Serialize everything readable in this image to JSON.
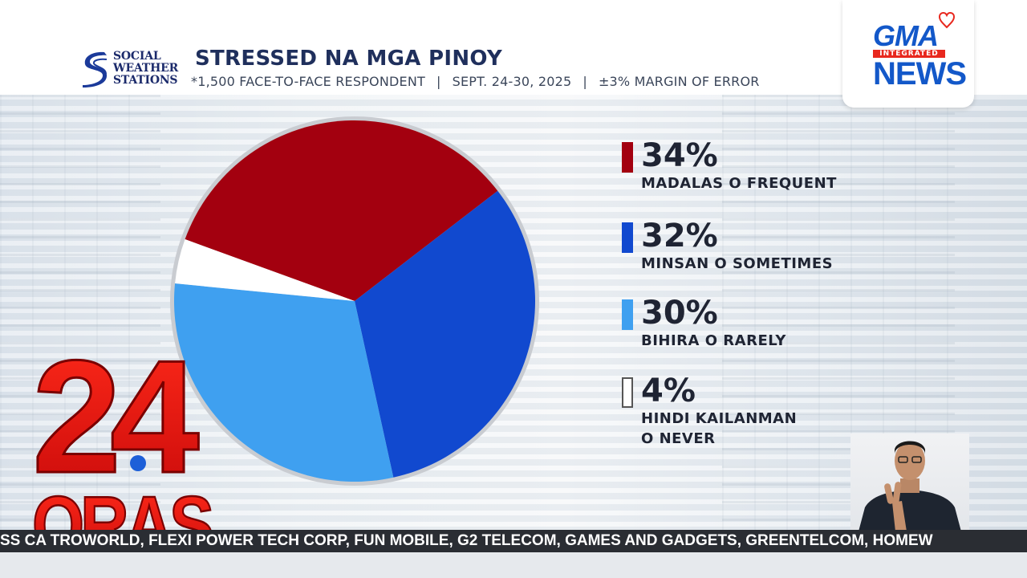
{
  "header": {
    "sws_logo": [
      "SOCIAL",
      "WEATHER",
      "STATIONS"
    ],
    "title": "STRESSED NA MGA PINOY",
    "subtitle_parts": [
      "*1,500 FACE-TO-FACE RESPONDENT",
      "SEPT. 24-30, 2025",
      "±3% MARGIN OF ERROR"
    ],
    "separator": "|"
  },
  "network_logo": {
    "top": "GMA",
    "band": "INTEGRATED",
    "bottom": "NEWS"
  },
  "show_logo": {
    "line1": "24",
    "line2": "ORAS"
  },
  "ticker": {
    "text": "SS CA   TROWORLD, FLEXI POWER TECH CORP, FUN MOBILE, G2 TELECOM, GAMES AND GADGETS, GREENTELCOM,  HOMEW"
  },
  "chart_data": {
    "type": "pie",
    "slices": [
      {
        "label": "MADALAS O FREQUENT",
        "value": 34,
        "display": "34%",
        "color": "#a3000f"
      },
      {
        "label": "MINSAN O SOMETIMES",
        "value": 32,
        "display": "32%",
        "color": "#1149cf"
      },
      {
        "label": "BIHIRA O RARELY",
        "value": 30,
        "display": "30%",
        "color": "#3fa0f0"
      },
      {
        "label": "HINDI KAILANMAN\nO NEVER",
        "value": 4,
        "display": "4%",
        "color": "#ffffff"
      }
    ],
    "legend": {
      "position": "right",
      "items": [
        {
          "pct": "34%",
          "label_lines": [
            "MADALAS O FREQUENT"
          ]
        },
        {
          "pct": "32%",
          "label_lines": [
            "MINSAN O SOMETIMES"
          ]
        },
        {
          "pct": "30%",
          "label_lines": [
            "BIHIRA O RARELY"
          ]
        },
        {
          "pct": "4%",
          "label_lines": [
            "HINDI KAILANMAN",
            "O NEVER"
          ]
        }
      ]
    }
  }
}
